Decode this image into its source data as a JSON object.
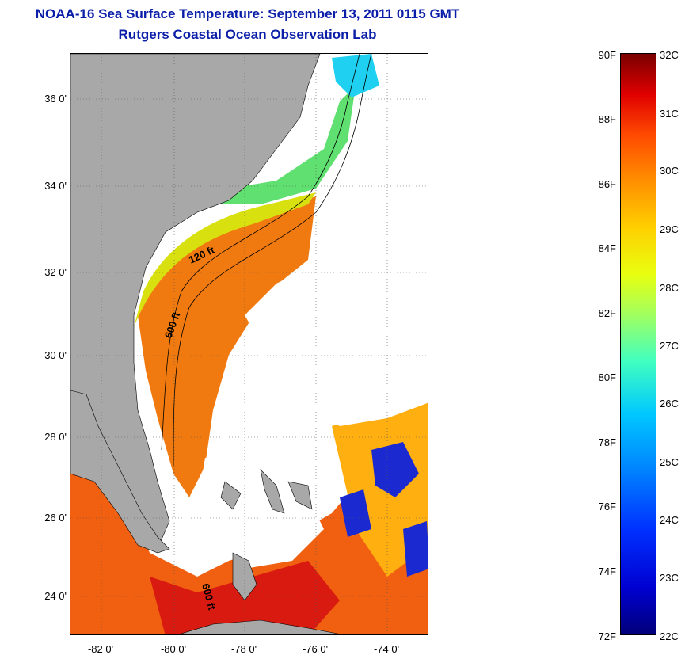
{
  "title": {
    "line1": "NOAA-16 Sea Surface Temperature:  September 13, 2011 0115 GMT",
    "line2": "Rutgers Coastal Ocean Observation Lab"
  },
  "map": {
    "lat_ticks": [
      "36 0'",
      "34 0'",
      "32 0'",
      "30 0'",
      "28 0'",
      "26 0'",
      "24 0'"
    ],
    "lon_ticks": [
      "-82 0'",
      "-80 0'",
      "-78 0'",
      "-76 0'",
      "-74 0'"
    ],
    "depth_labels": [
      "120 ft",
      "600 ft",
      "600 ft"
    ],
    "grid": true,
    "colors": {
      "land": "#a8a8a8",
      "cloud": "#ffffff",
      "bathymetry": "#000000"
    }
  },
  "colorbar": {
    "fahrenheit": [
      "90F",
      "88F",
      "86F",
      "84F",
      "82F",
      "80F",
      "78F",
      "76F",
      "74F",
      "72F"
    ],
    "celsius": [
      "32C",
      "31C",
      "30C",
      "29C",
      "28C",
      "27C",
      "26C",
      "25C",
      "24C",
      "23C",
      "22C"
    ],
    "range_f": [
      72,
      90
    ],
    "range_c": [
      22,
      32
    ],
    "colormap": "jet"
  }
}
